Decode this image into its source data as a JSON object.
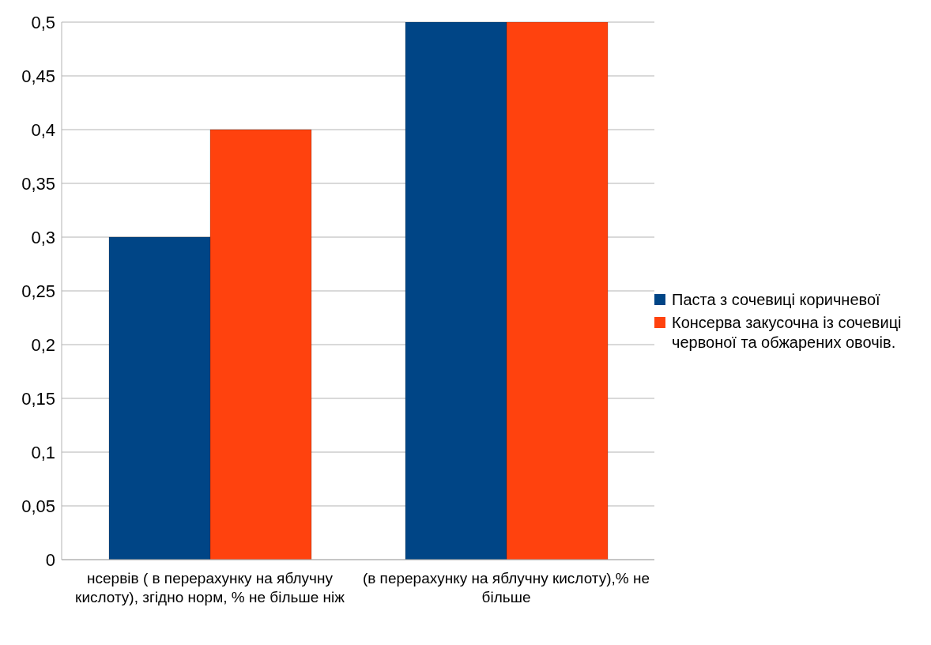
{
  "chart_data": {
    "type": "bar",
    "categories": [
      "нсервів ( в перерахунку на яблучну кислоту), згідно норм, % не більше ніж",
      "(в перерахунку на яблучну кислоту),% не більше"
    ],
    "series": [
      {
        "name": "Паста з сочевиці коричневої",
        "color": "#004586",
        "values": [
          0.3,
          0.5
        ]
      },
      {
        "name": "Консерва  закусочна із сочевиці червоної та обжарених овочів.",
        "color": "#ff420e",
        "values": [
          0.4,
          0.5
        ]
      }
    ],
    "ylim": [
      0,
      0.5
    ],
    "yticks": [
      {
        "value": 0,
        "label": "0"
      },
      {
        "value": 0.05,
        "label": "0,05"
      },
      {
        "value": 0.1,
        "label": "0,1"
      },
      {
        "value": 0.15,
        "label": "0,15"
      },
      {
        "value": 0.2,
        "label": "0,2"
      },
      {
        "value": 0.25,
        "label": "0,25"
      },
      {
        "value": 0.3,
        "label": "0,3"
      },
      {
        "value": 0.35,
        "label": "0,35"
      },
      {
        "value": 0.4,
        "label": "0,4"
      },
      {
        "value": 0.45,
        "label": "0,45"
      },
      {
        "value": 0.5,
        "label": "0,5"
      }
    ],
    "grid": "y",
    "legend": "right"
  }
}
